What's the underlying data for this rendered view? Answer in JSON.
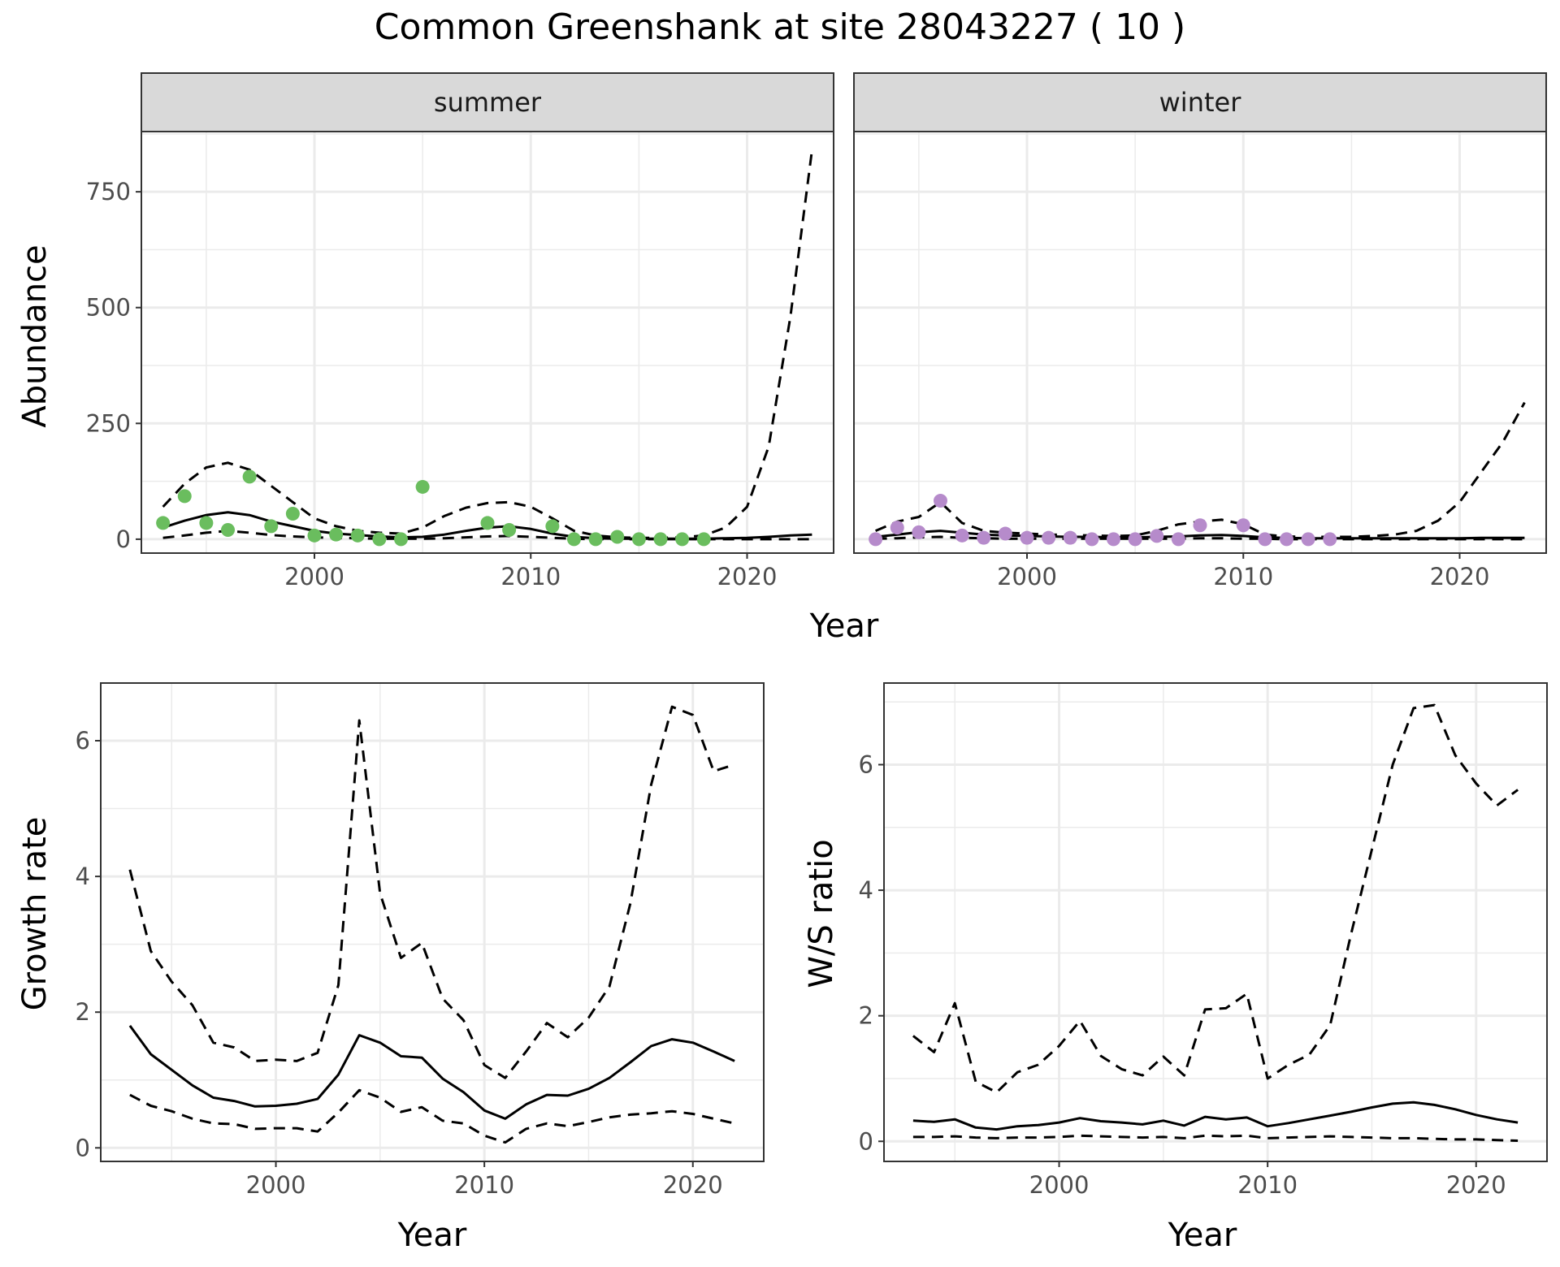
{
  "title": "Common Greenshank at site 28043227 ( 10 )",
  "colors": {
    "summer": "#6ABD5E",
    "winter": "#B68BCB",
    "line": "#000000"
  },
  "chart_data": [
    {
      "type": "line",
      "panel": "summer",
      "strip_label": "summer",
      "xlabel": "Year",
      "ylabel": "Abundance",
      "xlim": [
        1992,
        2024
      ],
      "ylim": [
        -30,
        880
      ],
      "xticks": [
        2000,
        2010,
        2020
      ],
      "yticks": [
        0,
        250,
        500,
        750
      ],
      "grid": true,
      "x": [
        1993,
        1994,
        1995,
        1996,
        1997,
        1998,
        1999,
        2000,
        2001,
        2002,
        2003,
        2004,
        2005,
        2006,
        2007,
        2008,
        2009,
        2010,
        2011,
        2012,
        2013,
        2014,
        2015,
        2016,
        2017,
        2018,
        2019,
        2020,
        2021,
        2022,
        2023
      ],
      "series": [
        {
          "role": "estimate",
          "values": [
            25,
            40,
            52,
            58,
            52,
            38,
            28,
            18,
            12,
            9,
            6,
            4,
            5,
            10,
            18,
            25,
            28,
            22,
            12,
            5,
            2,
            1,
            1,
            1,
            1,
            1,
            2,
            3,
            5,
            8,
            10
          ]
        },
        {
          "role": "upper",
          "values": [
            70,
            120,
            155,
            165,
            150,
            115,
            80,
            45,
            28,
            18,
            14,
            12,
            25,
            50,
            68,
            78,
            80,
            70,
            45,
            18,
            8,
            4,
            3,
            3,
            4,
            8,
            25,
            70,
            200,
            480,
            840
          ]
        },
        {
          "role": "lower",
          "values": [
            3,
            8,
            14,
            18,
            14,
            9,
            6,
            4,
            3,
            2,
            1,
            1,
            1,
            2,
            4,
            6,
            7,
            5,
            3,
            1,
            0,
            0,
            0,
            0,
            0,
            0,
            0,
            0,
            0,
            0,
            0
          ]
        }
      ],
      "points": {
        "x": [
          1993,
          1994,
          1995,
          1996,
          1997,
          1998,
          1999,
          2000,
          2001,
          2002,
          2003,
          2004,
          2005,
          2008,
          2009,
          2011,
          2012,
          2013,
          2014,
          2015,
          2016,
          2017,
          2018
        ],
        "y": [
          35,
          93,
          35,
          20,
          135,
          28,
          55,
          8,
          10,
          8,
          0,
          0,
          113,
          35,
          20,
          28,
          0,
          0,
          5,
          0,
          0,
          0,
          0
        ]
      }
    },
    {
      "type": "line",
      "panel": "winter",
      "strip_label": "winter",
      "xlabel": "Year",
      "ylabel": "Abundance",
      "xlim": [
        1992,
        2024
      ],
      "ylim": [
        -30,
        880
      ],
      "xticks": [
        2000,
        2010,
        2020
      ],
      "yticks": [
        0,
        250,
        500,
        750
      ],
      "grid": true,
      "x": [
        1993,
        1994,
        1995,
        1996,
        1997,
        1998,
        1999,
        2000,
        2001,
        2002,
        2003,
        2004,
        2005,
        2006,
        2007,
        2008,
        2009,
        2010,
        2011,
        2012,
        2013,
        2014,
        2015,
        2016,
        2017,
        2018,
        2019,
        2020,
        2021,
        2022,
        2023
      ],
      "series": [
        {
          "role": "estimate",
          "values": [
            5,
            10,
            15,
            18,
            14,
            10,
            8,
            7,
            6,
            5,
            5,
            4,
            4,
            5,
            6,
            8,
            9,
            7,
            4,
            3,
            2,
            2,
            2,
            2,
            2,
            2,
            2,
            2,
            3,
            3,
            3
          ]
        },
        {
          "role": "upper",
          "values": [
            18,
            38,
            48,
            80,
            35,
            18,
            14,
            12,
            10,
            9,
            8,
            7,
            8,
            18,
            32,
            38,
            42,
            32,
            10,
            6,
            5,
            5,
            5,
            7,
            10,
            18,
            40,
            80,
            145,
            210,
            295
          ]
        },
        {
          "role": "lower",
          "values": [
            1,
            2,
            4,
            5,
            3,
            2,
            1,
            1,
            1,
            1,
            1,
            1,
            1,
            1,
            1,
            2,
            2,
            1,
            1,
            0,
            0,
            0,
            0,
            0,
            0,
            0,
            0,
            0,
            0,
            0,
            0
          ]
        }
      ],
      "points": {
        "x": [
          1993,
          1994,
          1995,
          1996,
          1997,
          1998,
          1999,
          2000,
          2001,
          2002,
          2003,
          2004,
          2005,
          2006,
          2007,
          2008,
          2010,
          2011,
          2012,
          2013,
          2014
        ],
        "y": [
          0,
          25,
          15,
          83,
          8,
          3,
          12,
          3,
          3,
          3,
          0,
          0,
          0,
          7,
          0,
          30,
          30,
          0,
          0,
          0,
          0
        ]
      }
    },
    {
      "type": "line",
      "panel": "growth",
      "xlabel": "Year",
      "ylabel": "Growth rate",
      "xlim": [
        1991.6,
        2023.4
      ],
      "ylim": [
        -0.2,
        6.85
      ],
      "xticks": [
        2000,
        2010,
        2020
      ],
      "yticks": [
        0,
        2,
        4,
        6
      ],
      "grid": true,
      "x": [
        1993,
        1994,
        1995,
        1996,
        1997,
        1998,
        1999,
        2000,
        2001,
        2002,
        2003,
        2004,
        2005,
        2006,
        2007,
        2008,
        2009,
        2010,
        2011,
        2012,
        2013,
        2014,
        2015,
        2016,
        2017,
        2018,
        2019,
        2020,
        2021,
        2022
      ],
      "series": [
        {
          "role": "estimate",
          "values": [
            1.8,
            1.38,
            1.15,
            0.92,
            0.74,
            0.69,
            0.61,
            0.62,
            0.65,
            0.72,
            1.08,
            1.66,
            1.55,
            1.35,
            1.33,
            1.02,
            0.82,
            0.55,
            0.43,
            0.64,
            0.78,
            0.77,
            0.87,
            1.03,
            1.26,
            1.5,
            1.6,
            1.55,
            1.42,
            1.28
          ]
        },
        {
          "role": "upper",
          "values": [
            4.1,
            2.9,
            2.45,
            2.1,
            1.55,
            1.48,
            1.28,
            1.3,
            1.28,
            1.4,
            2.4,
            6.3,
            3.75,
            2.8,
            3.02,
            2.2,
            1.88,
            1.22,
            1.03,
            1.42,
            1.84,
            1.63,
            1.92,
            2.38,
            3.6,
            5.35,
            6.5,
            6.38,
            5.55,
            5.65
          ]
        },
        {
          "role": "lower",
          "values": [
            0.78,
            0.62,
            0.54,
            0.43,
            0.36,
            0.35,
            0.28,
            0.29,
            0.29,
            0.24,
            0.52,
            0.85,
            0.74,
            0.53,
            0.6,
            0.4,
            0.36,
            0.18,
            0.08,
            0.28,
            0.36,
            0.32,
            0.38,
            0.45,
            0.49,
            0.51,
            0.54,
            0.5,
            0.43,
            0.36
          ]
        }
      ]
    },
    {
      "type": "line",
      "panel": "ratio",
      "xlabel": "Year",
      "ylabel": "W/S ratio",
      "xlim": [
        1991.6,
        2023.4
      ],
      "ylim": [
        -0.32,
        7.3
      ],
      "xticks": [
        2000,
        2010,
        2020
      ],
      "yticks": [
        0,
        2,
        4,
        6
      ],
      "grid": true,
      "x": [
        1993,
        1994,
        1995,
        1996,
        1997,
        1998,
        1999,
        2000,
        2001,
        2002,
        2003,
        2004,
        2005,
        2006,
        2007,
        2008,
        2009,
        2010,
        2011,
        2012,
        2013,
        2014,
        2015,
        2016,
        2017,
        2018,
        2019,
        2020,
        2021,
        2022
      ],
      "series": [
        {
          "role": "estimate",
          "values": [
            0.33,
            0.31,
            0.35,
            0.22,
            0.19,
            0.24,
            0.26,
            0.3,
            0.37,
            0.32,
            0.3,
            0.27,
            0.33,
            0.25,
            0.39,
            0.35,
            0.38,
            0.24,
            0.29,
            0.35,
            0.41,
            0.47,
            0.54,
            0.6,
            0.62,
            0.58,
            0.51,
            0.42,
            0.35,
            0.3
          ]
        },
        {
          "role": "upper",
          "values": [
            1.68,
            1.42,
            2.2,
            0.95,
            0.78,
            1.1,
            1.22,
            1.52,
            1.92,
            1.36,
            1.15,
            1.05,
            1.35,
            1.05,
            2.1,
            2.12,
            2.35,
            1.0,
            1.22,
            1.38,
            1.85,
            3.3,
            4.65,
            6.0,
            6.9,
            6.95,
            6.15,
            5.7,
            5.35,
            5.6
          ]
        },
        {
          "role": "lower",
          "values": [
            0.07,
            0.07,
            0.08,
            0.06,
            0.05,
            0.06,
            0.06,
            0.07,
            0.09,
            0.08,
            0.07,
            0.06,
            0.07,
            0.05,
            0.09,
            0.08,
            0.09,
            0.05,
            0.06,
            0.07,
            0.08,
            0.07,
            0.06,
            0.05,
            0.05,
            0.04,
            0.03,
            0.03,
            0.02,
            0.01
          ]
        }
      ]
    }
  ]
}
